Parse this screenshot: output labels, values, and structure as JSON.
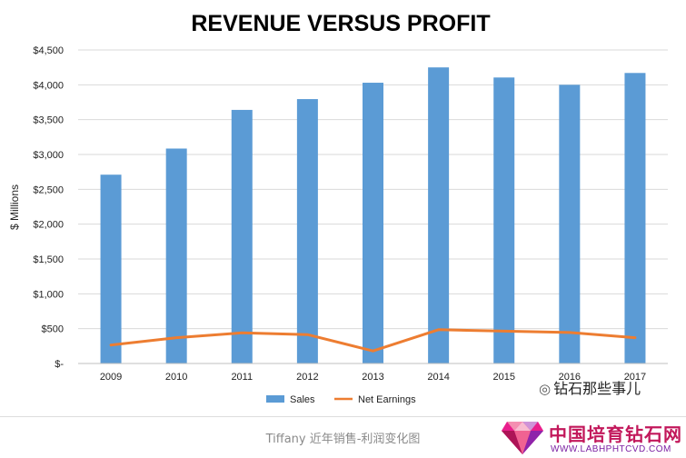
{
  "chart_data": {
    "type": "bar",
    "title": "REVENUE VERSUS PROFIT",
    "ylabel": "$ Millions",
    "xlabel": "",
    "categories": [
      "2009",
      "2010",
      "2011",
      "2012",
      "2013",
      "2014",
      "2015",
      "2016",
      "2017"
    ],
    "ylim": [
      0,
      4500
    ],
    "yticks": [
      0,
      500,
      1000,
      1500,
      2000,
      2500,
      3000,
      3500,
      4000,
      4500
    ],
    "ytick_labels": [
      "$-",
      "$500",
      "$1,000",
      "$1,500",
      "$2,000",
      "$2,500",
      "$3,000",
      "$3,500",
      "$4,000",
      "$4,500"
    ],
    "grid": true,
    "legend_position": "bottom",
    "series": [
      {
        "name": "Sales",
        "type": "bar",
        "color": "#5B9BD5",
        "values": [
          2710,
          3085,
          3640,
          3795,
          4030,
          4250,
          4105,
          4000,
          4170
        ]
      },
      {
        "name": "Net Earnings",
        "type": "line",
        "color": "#ED7D31",
        "values": [
          265,
          370,
          440,
          415,
          180,
          485,
          465,
          445,
          370
        ]
      }
    ]
  },
  "caption": "Tiffany 近年销售-利润变化图",
  "watermark": "钻石那些事儿",
  "site": {
    "name": "中国培育钻石网",
    "url": "WWW.LABHPHTCVD.COM"
  }
}
